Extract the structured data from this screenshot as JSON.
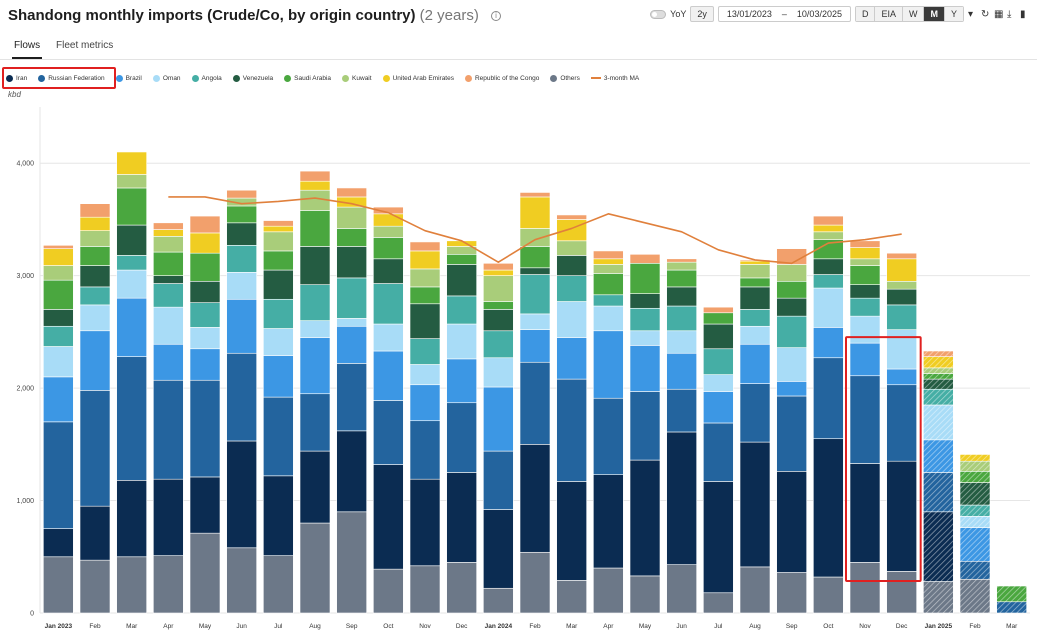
{
  "header": {
    "title": "Shandong monthly imports (Crude/Co, by origin country)",
    "subtitle": "(2 years)",
    "info_icon": "info-icon"
  },
  "controls": {
    "yoy_label": "YoY",
    "range_label": "2y",
    "date_from": "13/01/2023",
    "date_sep": "–",
    "date_to": "10/03/2025",
    "frequency": [
      "D",
      "EIA",
      "W",
      "M",
      "Y"
    ],
    "active_frequency": "M",
    "icons": [
      "chevron-down-icon",
      "refresh-icon",
      "grid-icon",
      "download-icon",
      "bookmark-icon"
    ]
  },
  "tabs": [
    {
      "label": "Flows",
      "active": true
    },
    {
      "label": "Fleet metrics",
      "active": false
    }
  ],
  "chart_data": {
    "type": "bar",
    "stacked": true,
    "title": "",
    "xlabel": "",
    "ylabel": "kbd",
    "ylim": [
      0,
      4500
    ],
    "yticks": [
      0,
      1000,
      2000,
      3000,
      4000
    ],
    "ytick_labels": [
      "0",
      "1,000",
      "2,000",
      "3,000",
      "4,000"
    ],
    "grid": "horizontal",
    "legend_position": "top-left",
    "categories": [
      "Jan 2023",
      "Feb",
      "Mar",
      "Apr",
      "May",
      "Jun",
      "Jul",
      "Aug",
      "Sep",
      "Oct",
      "Nov",
      "Dec",
      "Jan 2024",
      "Feb",
      "Mar",
      "Apr",
      "May",
      "Jun",
      "Jul",
      "Aug",
      "Sep",
      "Oct",
      "Nov",
      "Dec",
      "Jan 2025",
      "Feb",
      "Mar"
    ],
    "bold_categories": [
      "Jan 2023",
      "Jan 2024",
      "Jan 2025"
    ],
    "partial_periods": [
      "Jan 2025",
      "Feb",
      "Mar"
    ],
    "stack_order": [
      "Others",
      "Iran",
      "Russian Federation",
      "Brazil",
      "Oman",
      "Angola",
      "Venezuela",
      "Saudi Arabia",
      "Kuwait",
      "United Arab Emirates",
      "Republic of the Congo"
    ],
    "series": [
      {
        "name": "Iran",
        "color": "#0b2c52",
        "values": [
          250,
          480,
          680,
          680,
          500,
          950,
          710,
          640,
          720,
          930,
          770,
          800,
          700,
          960,
          880,
          830,
          1030,
          1180,
          990,
          1110,
          900,
          1230,
          880,
          980,
          620,
          0,
          0
        ]
      },
      {
        "name": "Russian Federation",
        "color": "#23649e",
        "values": [
          950,
          1030,
          1100,
          880,
          860,
          780,
          700,
          510,
          600,
          570,
          520,
          620,
          520,
          730,
          910,
          680,
          610,
          380,
          520,
          520,
          670,
          720,
          780,
          680,
          350,
          160,
          100
        ]
      },
      {
        "name": "Brazil",
        "color": "#3c97e4",
        "values": [
          400,
          530,
          520,
          320,
          280,
          480,
          370,
          500,
          330,
          440,
          320,
          390,
          570,
          290,
          370,
          600,
          410,
          320,
          280,
          350,
          130,
          270,
          290,
          140,
          290,
          300,
          0
        ]
      },
      {
        "name": "Oman",
        "color": "#a8dcf7",
        "values": [
          270,
          230,
          250,
          330,
          190,
          240,
          240,
          150,
          70,
          240,
          180,
          310,
          260,
          140,
          320,
          220,
          130,
          200,
          150,
          160,
          300,
          350,
          240,
          350,
          310,
          100,
          0
        ]
      },
      {
        "name": "Angola",
        "color": "#45aea5",
        "values": [
          180,
          160,
          130,
          210,
          220,
          240,
          260,
          320,
          360,
          360,
          230,
          250,
          240,
          350,
          230,
          100,
          200,
          220,
          230,
          150,
          280,
          120,
          160,
          220,
          140,
          100,
          0
        ]
      },
      {
        "name": "Venezuela",
        "color": "#245c42",
        "values": [
          150,
          190,
          270,
          70,
          190,
          200,
          260,
          340,
          280,
          220,
          310,
          280,
          190,
          60,
          180,
          0,
          130,
          170,
          220,
          200,
          160,
          140,
          120,
          140,
          90,
          200,
          0
        ]
      },
      {
        "name": "Saudi Arabia",
        "color": "#4aa73f",
        "values": [
          260,
          170,
          330,
          210,
          250,
          150,
          170,
          320,
          160,
          190,
          150,
          90,
          70,
          190,
          0,
          190,
          270,
          150,
          100,
          80,
          150,
          170,
          170,
          0,
          50,
          100,
          140
        ]
      },
      {
        "name": "Kuwait",
        "color": "#a9cd7a",
        "values": [
          130,
          140,
          120,
          140,
          0,
          70,
          170,
          180,
          190,
          100,
          160,
          70,
          230,
          160,
          130,
          80,
          0,
          70,
          0,
          120,
          150,
          70,
          60,
          70,
          50,
          90,
          0
        ]
      },
      {
        "name": "United Arab Emirates",
        "color": "#f0cd22",
        "values": [
          150,
          120,
          200,
          60,
          180,
          0,
          50,
          80,
          90,
          110,
          160,
          50,
          50,
          280,
          190,
          50,
          0,
          0,
          0,
          30,
          0,
          60,
          100,
          200,
          100,
          60,
          0
        ]
      },
      {
        "name": "Republic of the Congo",
        "color": "#f2a06c",
        "values": [
          30,
          120,
          0,
          60,
          150,
          70,
          50,
          90,
          80,
          60,
          80,
          0,
          60,
          40,
          40,
          70,
          80,
          30,
          50,
          10,
          140,
          80,
          60,
          50,
          50,
          0,
          0
        ]
      },
      {
        "name": "Others",
        "color": "#6c7888",
        "values": [
          500,
          470,
          500,
          510,
          710,
          580,
          510,
          800,
          900,
          390,
          420,
          450,
          220,
          540,
          290,
          400,
          330,
          430,
          180,
          410,
          360,
          320,
          450,
          370,
          280,
          300,
          0
        ]
      }
    ],
    "moving_average": {
      "name": "3-month MA",
      "color": "#e0803c",
      "values": [
        null,
        null,
        null,
        3700,
        3700,
        3640,
        3660,
        3690,
        3640,
        3560,
        3400,
        3310,
        3120,
        3320,
        3420,
        3550,
        3470,
        3390,
        3230,
        3140,
        3110,
        3290,
        3320,
        3370,
        null,
        null,
        null
      ]
    },
    "highlight": {
      "categories": [
        "Nov",
        "Dec"
      ],
      "year": 2024,
      "color": "#e02020"
    },
    "legend_highlight": [
      "Iran",
      "Russian Federation"
    ]
  }
}
